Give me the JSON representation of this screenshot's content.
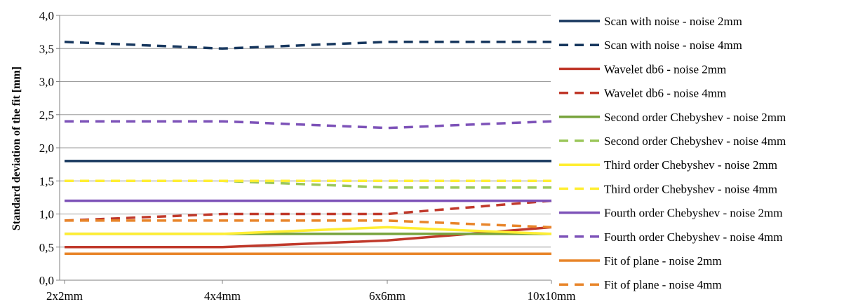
{
  "chart_data": {
    "type": "line",
    "title": "",
    "xlabel": "",
    "ylabel": "Standard deviation of the fit [mm]",
    "categories": [
      "2x2mm",
      "4x4mm",
      "6x6mm",
      "10x10mm"
    ],
    "ylim": [
      0,
      4
    ],
    "yticks": [
      "0,0",
      "0,5",
      "1,0",
      "1,5",
      "2,0",
      "2,5",
      "3,0",
      "3,5",
      "4,0"
    ],
    "grid": "horizontal",
    "legend_position": "right",
    "series": [
      {
        "name": "Scan with noise - noise 2mm",
        "values": [
          1.8,
          1.8,
          1.8,
          1.8
        ],
        "color": "#17375e",
        "dash": "solid"
      },
      {
        "name": "Scan with noise - noise 4mm",
        "values": [
          3.6,
          3.5,
          3.6,
          3.6
        ],
        "color": "#17375e",
        "dash": "dashed"
      },
      {
        "name": "Wavelet db6 - noise 2mm",
        "values": [
          0.5,
          0.5,
          0.6,
          0.8
        ],
        "color": "#c0392b",
        "dash": "solid"
      },
      {
        "name": "Wavelet db6 - noise 4mm",
        "values": [
          0.9,
          1.0,
          1.0,
          1.2
        ],
        "color": "#c0392b",
        "dash": "dashed"
      },
      {
        "name": "Second order Chebyshev - noise 2mm",
        "values": [
          0.7,
          0.7,
          0.7,
          0.7
        ],
        "color": "#77a33c",
        "dash": "solid"
      },
      {
        "name": "Second order Chebyshev - noise 4mm",
        "values": [
          1.5,
          1.5,
          1.4,
          1.4
        ],
        "color": "#9bc75a",
        "dash": "dashed"
      },
      {
        "name": "Third order Chebyshev - noise 2mm",
        "values": [
          0.7,
          0.7,
          0.8,
          0.7
        ],
        "color": "#ffee33",
        "dash": "solid"
      },
      {
        "name": "Third order Chebyshev - noise 4mm",
        "values": [
          1.5,
          1.5,
          1.5,
          1.5
        ],
        "color": "#ffee33",
        "dash": "dashed"
      },
      {
        "name": "Fourth order Chebyshev - noise 2mm",
        "values": [
          1.2,
          1.2,
          1.2,
          1.2
        ],
        "color": "#7d52b8",
        "dash": "solid"
      },
      {
        "name": "Fourth order Chebyshev - noise 4mm",
        "values": [
          2.4,
          2.4,
          2.3,
          2.4
        ],
        "color": "#7d52b8",
        "dash": "dashed"
      },
      {
        "name": "Fit of plane - noise 2mm",
        "values": [
          0.4,
          0.4,
          0.4,
          0.4
        ],
        "color": "#e8852a",
        "dash": "solid"
      },
      {
        "name": "Fit of plane - noise 4mm",
        "values": [
          0.9,
          0.9,
          0.9,
          0.8
        ],
        "color": "#e8852a",
        "dash": "dashed"
      }
    ]
  }
}
